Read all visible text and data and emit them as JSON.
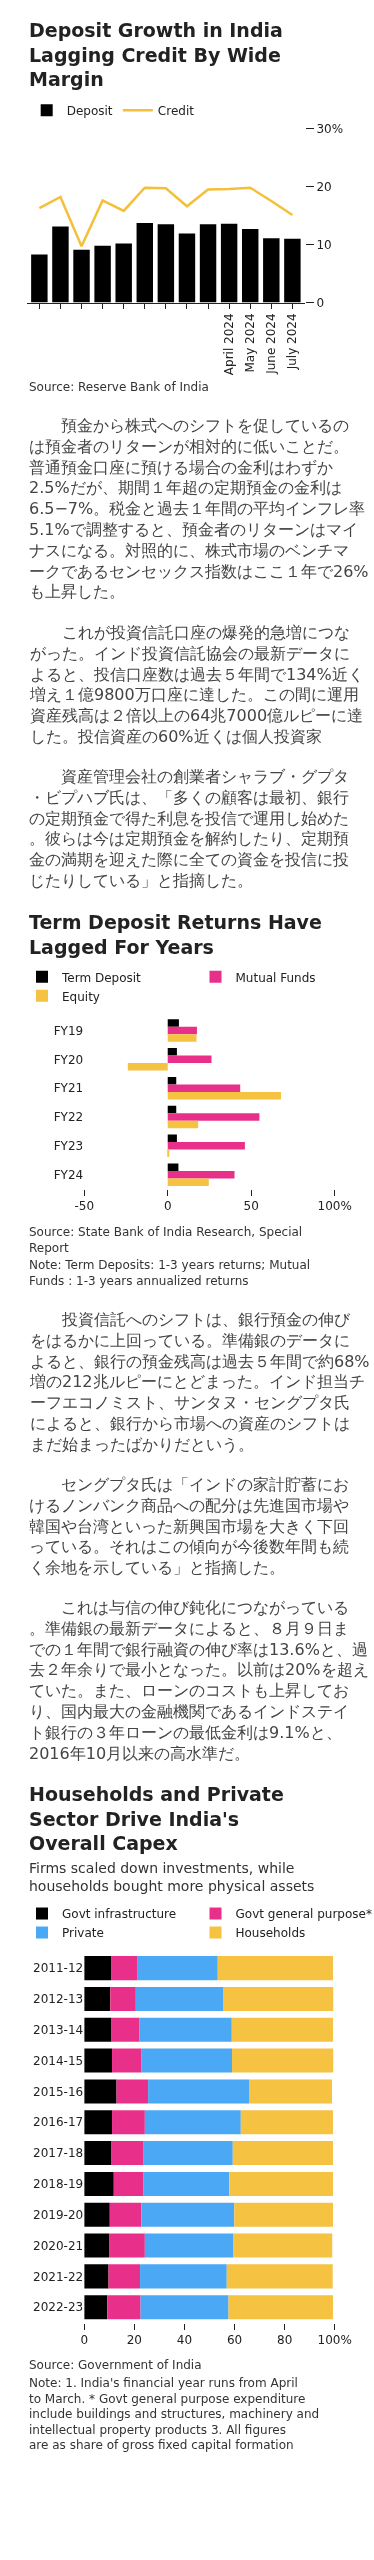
{
  "chart_data": [
    {
      "type": "bar",
      "title": "Deposit Growth in India Lagging Credit By Wide Margin",
      "categories": [
        null,
        null,
        null,
        null,
        null,
        null,
        null,
        null,
        null,
        "April 2024",
        "May 2024",
        "June 2024",
        "July 2024"
      ],
      "series": [
        {
          "name": "Deposit",
          "color": "#000000",
          "values": [
            8.3,
            13.1,
            9.1,
            9.8,
            10.2,
            13.7,
            13.5,
            11.9,
            13.5,
            13.6,
            12.7,
            11.1,
            11.0
          ]
        },
        {
          "name": "Credit",
          "type": "line",
          "color": "#f5bf3a",
          "values": [
            16.3,
            18.2,
            9.7,
            17.6,
            15.8,
            19.8,
            19.7,
            16.6,
            19.5,
            19.6,
            19.8,
            17.5,
            15.1
          ]
        }
      ],
      "ylim": [
        0,
        30
      ],
      "yticks": [
        0,
        10,
        20,
        {
          "value": 30,
          "label": "30%"
        }
      ],
      "legend": "top left",
      "annotations": [
        "Source: Reserve Bank of India"
      ]
    },
    {
      "type": "other",
      "annotations": [
        "預金から株式へのシフトを促しているのは預金者のリターンが相対的に低いことだ。普通預金口座に預ける場合の金利はわずか2.5%だが、期間１年超の定期預金の金利は6.5−7%。税金と過去１年間の平均インフレ率5.1%で調整すると、預金者のリターンはマイナスになる。対照的に、株式市場のベンチマークであるセンセックス指数はここ１年で26%も上昇した。",
        "これが投資信託口座の爆発的急増につながった。インド投資信託協会の最新データによると、投信口座数は過去５年間で134%近く増え１億9800万口座に達した。この間に運用資産残高は２倍以上の64兆7000億ルピーに達した。投信資産の60%近くは個人投資家",
        "資産管理会社の創業者シャラブ・グプタ・ビプハブ氏は、「多くの顧客は最初、銀行の定期預金で得た利息を投信で運用し始めた。彼らは今は定期預金を解約したり、定期預金の満期を迎えた際に全ての資金を投信に投じたりしている」と指摘した。"
      ]
    },
    {
      "type": "bar",
      "orientation": "horizontal",
      "title": "Term Deposit Returns Have Lagged For Years",
      "categories": [
        "FY19",
        "FY20",
        "FY21",
        "FY22",
        "FY23",
        "FY24"
      ],
      "series": [
        {
          "name": "Term Deposit",
          "color": "#000000",
          "values": [
            6.7,
            5.5,
            5.1,
            5.1,
            5.5,
            6.4
          ]
        },
        {
          "name": "Mutual Funds",
          "color": "#e8308a",
          "values": [
            17.5,
            26.2,
            43.4,
            54.9,
            46.2,
            40.0
          ]
        },
        {
          "name": "Equity",
          "color": "#f5c242",
          "values": [
            17.2,
            -23.9,
            67.8,
            18.2,
            0.9,
            24.6
          ]
        }
      ],
      "xlim": [
        -50,
        100
      ],
      "xticks": [
        -50,
        0,
        50,
        {
          "value": 100,
          "label": "100%"
        }
      ],
      "legend": "top left",
      "annotations": [
        "Source: State Bank of India Research, Special Report",
        "Note: Term Deposits: 1-3 years returns; Mutual Funds : 1-3 years annualized returns"
      ]
    },
    {
      "type": "other",
      "annotations": [
        "投資信託へのシフトは、銀行預金の伸びをはるかに上回っている。準備銀のデータによると、銀行の預金残高は過去５年間で約68%増の212兆ルピーにとどまった。インド担当チーフエコノミスト、サンタヌ・セングプタ氏によると、銀行から市場への資産のシフトはまだ始まったばかりだという。",
        "セングプタ氏は「インドの家計貯蓄におけるノンバンク商品への配分は先進国市場や韓国や台湾といった新興国市場を大きく下回っている。それはこの傾向が今後数年間も続く余地を示している」と指摘した。",
        "これは与信の伸び鈍化につながっている。準備銀の最新データによると、８月９日までの１年間で銀行融資の伸び率は13.6%と、過去２年余りで最小となった。以前は20%を超えていた。また、ローンのコストも上昇しており、国内最大の金融機関であるインドステイト銀行の３年ローンの最低金利は9.1%と、2016年10月以来の高水準だ。"
      ]
    },
    {
      "type": "bar",
      "orientation": "horizontal",
      "stacked": true,
      "title": "Households and Private Sector Drive India's Overall Capex",
      "subtitle": "Firms scaled down investments, while households bought more physical assets",
      "categories": [
        "2011-12",
        "2012-13",
        "2013-14",
        "2014-15",
        "2015-16",
        "2016-17",
        "2017-18",
        "2018-19",
        "2019-20",
        "2020-21",
        "2021-22",
        "2022-23"
      ],
      "series": [
        {
          "name": "Govt infrastructure",
          "color": "#000000",
          "values": [
            10.9,
            10.4,
            10.9,
            11.1,
            12.9,
            11.1,
            10.7,
            11.8,
            10.2,
            9.9,
            9.7,
            9.2
          ]
        },
        {
          "name": "Govt general purpose*",
          "color": "#e8308a",
          "values": [
            10.2,
            10.2,
            11.2,
            11.8,
            12.6,
            13.1,
            12.8,
            11.9,
            12.6,
            14.3,
            12.6,
            13.3
          ]
        },
        {
          "name": "Private",
          "color": "#4aa8f5",
          "values": [
            32.2,
            34.8,
            36.8,
            36.1,
            40.5,
            38.3,
            35.8,
            34.2,
            37.1,
            35.4,
            34.6,
            35.1
          ]
        },
        {
          "name": "Households",
          "color": "#f5c242",
          "values": [
            46.0,
            44.0,
            40.4,
            40.4,
            32.9,
            36.8,
            40.0,
            41.4,
            39.4,
            39.4,
            42.3,
            41.7
          ]
        }
      ],
      "xlim": [
        0,
        100
      ],
      "xticks": [
        0,
        20,
        40,
        60,
        80,
        {
          "value": 100,
          "label": "100%"
        }
      ],
      "legend": "top left",
      "annotations": [
        "Source: Government of India",
        "Note: 1. India's financial year runs from April to March. * Govt general purpose expenditure include buildings and structures, machinery and intellectual property products 3. All figures are as share of gross fixed capital formation"
      ]
    }
  ]
}
